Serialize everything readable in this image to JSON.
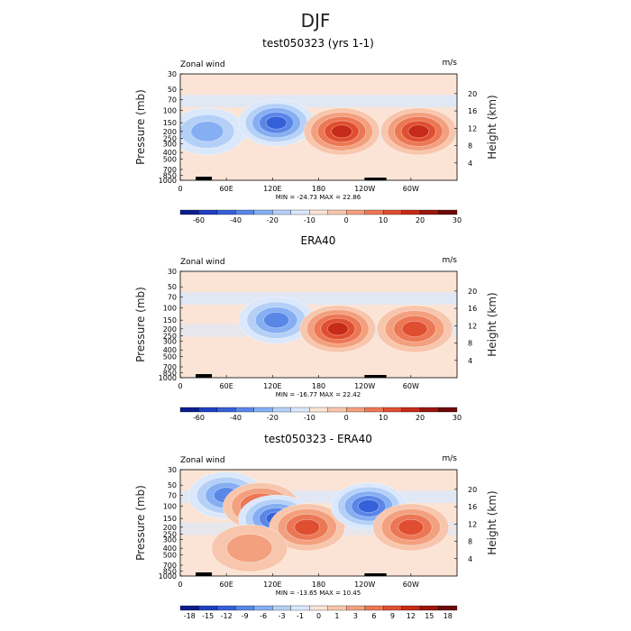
{
  "main_title": "DJF",
  "panel_labels": {
    "var_left": "Zonal wind",
    "var_right": "m/s",
    "minmax_min_label": "MIN =",
    "minmax_max_label": "MAX ="
  },
  "axes": {
    "ylabel_left": "Pressure (mb)",
    "ylabel_right": "Height (km)"
  },
  "chart_data": [
    {
      "type": "heatmap",
      "title": "test050323 (yrs 1-1)",
      "min": "-24.73",
      "max": "22.86",
      "x_ticks": [
        "0",
        "60E",
        "120E",
        "180",
        "120W",
        "60W"
      ],
      "x_tick_lon": [
        0,
        60,
        120,
        180,
        240,
        300
      ],
      "y_ticks": [
        "30",
        "50",
        "70",
        "100",
        "150",
        "200",
        "250",
        "300",
        "400",
        "500",
        "700",
        "850",
        "1000"
      ],
      "y_ticks_values": [
        30,
        50,
        70,
        100,
        150,
        200,
        250,
        300,
        400,
        500,
        700,
        850,
        1000
      ],
      "height_ticks": [
        "20",
        "16",
        "12",
        "8",
        "4"
      ],
      "height_values": [
        20,
        16,
        12,
        8,
        4
      ],
      "colorbar_labels": [
        "-60",
        "-40",
        "-20",
        "-10",
        "0",
        "10",
        "20",
        "30"
      ],
      "colorbar_colors": [
        "#0b1e8c",
        "#1f3fc4",
        "#3560d8",
        "#5a86e8",
        "#86aef2",
        "#b4d0f7",
        "#dbe8fb",
        "#fbe4d6",
        "#f8c6ac",
        "#f3a07f",
        "#ec7754",
        "#e04e32",
        "#c62a18",
        "#9b160c",
        "#6b0a05"
      ],
      "features": [
        {
          "lon": 35,
          "p": 200,
          "value": -8
        },
        {
          "lon": 125,
          "p": 150,
          "value": -20
        },
        {
          "lon": 210,
          "p": 200,
          "value": 22
        },
        {
          "lon": 310,
          "p": 200,
          "value": 18
        }
      ]
    },
    {
      "type": "heatmap",
      "title": "ERA40",
      "min": "-16.77",
      "max": "22.42",
      "x_ticks": [
        "0",
        "60E",
        "120E",
        "180",
        "120W",
        "60W"
      ],
      "x_tick_lon": [
        0,
        60,
        120,
        180,
        240,
        300
      ],
      "y_ticks": [
        "30",
        "50",
        "70",
        "100",
        "150",
        "200",
        "250",
        "300",
        "400",
        "500",
        "700",
        "850",
        "1000"
      ],
      "y_ticks_values": [
        30,
        50,
        70,
        100,
        150,
        200,
        250,
        300,
        400,
        500,
        700,
        850,
        1000
      ],
      "height_ticks": [
        "20",
        "16",
        "12",
        "8",
        "4"
      ],
      "height_values": [
        20,
        16,
        12,
        8,
        4
      ],
      "colorbar_labels": [
        "-60",
        "-40",
        "-20",
        "-10",
        "0",
        "10",
        "20",
        "30"
      ],
      "colorbar_colors": [
        "#0b1e8c",
        "#1f3fc4",
        "#3560d8",
        "#5a86e8",
        "#86aef2",
        "#b4d0f7",
        "#dbe8fb",
        "#fbe4d6",
        "#f8c6ac",
        "#f3a07f",
        "#ec7754",
        "#e04e32",
        "#c62a18",
        "#9b160c",
        "#6b0a05"
      ],
      "features": [
        {
          "lon": 125,
          "p": 150,
          "value": -15
        },
        {
          "lon": 205,
          "p": 200,
          "value": 22
        },
        {
          "lon": 305,
          "p": 200,
          "value": 16
        }
      ]
    },
    {
      "type": "heatmap",
      "title": "test050323 - ERA40",
      "min": "-13.65",
      "max": "10.45",
      "x_ticks": [
        "0",
        "60E",
        "120E",
        "180",
        "120W",
        "60W"
      ],
      "x_tick_lon": [
        0,
        60,
        120,
        180,
        240,
        300
      ],
      "y_ticks": [
        "30",
        "50",
        "70",
        "100",
        "150",
        "200",
        "250",
        "300",
        "400",
        "500",
        "700",
        "850",
        "1000"
      ],
      "y_ticks_values": [
        30,
        50,
        70,
        100,
        150,
        200,
        250,
        300,
        400,
        500,
        700,
        850,
        1000
      ],
      "height_ticks": [
        "20",
        "16",
        "12",
        "8",
        "4"
      ],
      "height_values": [
        20,
        16,
        12,
        8,
        4
      ],
      "colorbar_labels": [
        "-18",
        "-15",
        "-12",
        "-9",
        "-6",
        "-3",
        "-1",
        "0",
        "1",
        "3",
        "6",
        "9",
        "12",
        "15",
        "18"
      ],
      "colorbar_colors": [
        "#0b1e8c",
        "#1f3fc4",
        "#3560d8",
        "#5a86e8",
        "#86aef2",
        "#b4d0f7",
        "#dbe8fb",
        "#fbe4d6",
        "#f8c6ac",
        "#f3a07f",
        "#ec7754",
        "#e04e32",
        "#c62a18",
        "#9b160c",
        "#6b0a05"
      ],
      "features": [
        {
          "lon": 60,
          "p": 70,
          "value": -9
        },
        {
          "lon": 105,
          "p": 100,
          "value": 9
        },
        {
          "lon": 125,
          "p": 150,
          "value": -12
        },
        {
          "lon": 165,
          "p": 200,
          "value": 9
        },
        {
          "lon": 245,
          "p": 100,
          "value": -12
        },
        {
          "lon": 300,
          "p": 200,
          "value": 9
        },
        {
          "lon": 90,
          "p": 400,
          "value": 3
        }
      ]
    }
  ]
}
